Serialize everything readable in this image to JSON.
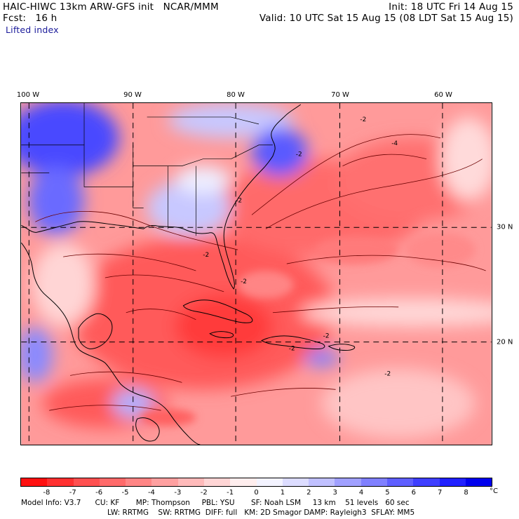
{
  "header": {
    "line1_left": "HAIC-HIWC 13km ARW-GFS init   NCAR/MMM",
    "line1_right": "Init: 18 UTC Fri 14 Aug 15",
    "line2_left": "Fcst:   16 h",
    "line2_right": "Valid: 10 UTC Sat 15 Aug 15 (08 LDT Sat 15 Aug 15)",
    "field_name": "Lifted index"
  },
  "map": {
    "lon_labels": [
      "100 W",
      "90 W",
      "80 W",
      "70 W",
      "60 W"
    ],
    "lat_labels": [
      "30 N",
      "20 N"
    ],
    "contour_labels": [
      "-2",
      "-4",
      "-2",
      "-2",
      "-2",
      "-2",
      "-2",
      "-2",
      "-2"
    ]
  },
  "colorbar": {
    "labels": [
      "-8",
      "-7",
      "-6",
      "-5",
      "-4",
      "-3",
      "-2",
      "-1",
      "0",
      "1",
      "2",
      "3",
      "4",
      "5",
      "6",
      "7",
      "8"
    ],
    "unit": "°C",
    "colors": [
      "#ff1010",
      "#ff3030",
      "#ff5050",
      "#ff6a6a",
      "#ff8585",
      "#ffa0a0",
      "#ffbaba",
      "#ffd5d5",
      "#ffeeee",
      "#f3f3ff",
      "#dcdcff",
      "#c0c0ff",
      "#a0a0ff",
      "#8080ff",
      "#5f5fff",
      "#3f3fff",
      "#2020ff",
      "#0000ee"
    ]
  },
  "footer": {
    "line1": "Model Info: V3.7      CU: KF       MP: Thompson     PBL: YSU       SF: Noah LSM     13 km    51 levels   60 sec",
    "line2": "LW: RRTMG    SW: RRTMG  DIFF: full   KM: 2D Smagor DAMP: Rayleigh3  SFLAY: MM5"
  }
}
